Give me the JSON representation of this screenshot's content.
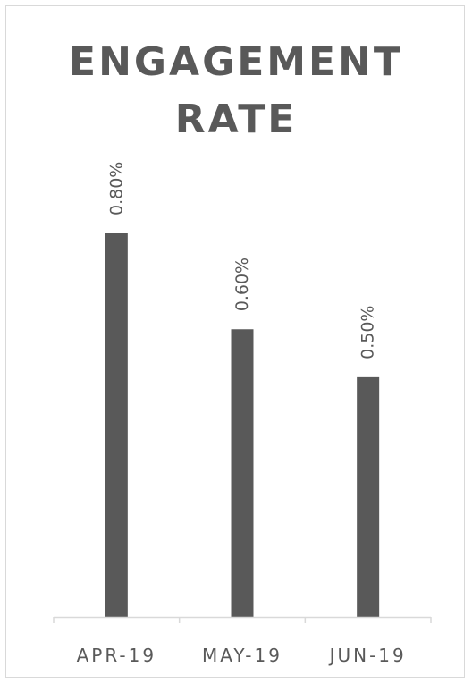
{
  "chart_data": {
    "type": "bar",
    "title_lines": [
      "ENGAGEMENT",
      "RATE"
    ],
    "categories": [
      "APR-19",
      "MAY-19",
      "JUN-19"
    ],
    "values": [
      0.8,
      0.6,
      0.5
    ],
    "value_labels": [
      "0.80%",
      "0.60%",
      "0.50%"
    ],
    "unit": "%",
    "ylim": [
      0,
      0.8
    ],
    "grid": false,
    "legend": "none",
    "bar_color": "#595959",
    "axis_color": "#d9d9d9",
    "label_color": "#595959"
  }
}
